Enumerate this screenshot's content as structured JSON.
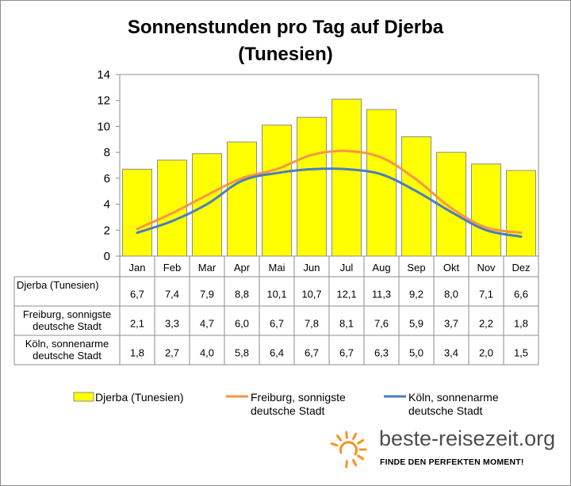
{
  "chart_data": {
    "type": "bar",
    "title": "Sonnenstunden pro Tag auf Djerba (Tunesien)",
    "title_lines": [
      "Sonnenstunden pro Tag auf Djerba",
      "(Tunesien)"
    ],
    "categories": [
      "Jan",
      "Feb",
      "Mar",
      "Apr",
      "Mai",
      "Jun",
      "Jul",
      "Aug",
      "Sep",
      "Okt",
      "Nov",
      "Dez"
    ],
    "ylim": [
      0,
      14
    ],
    "yticks": [
      0,
      2,
      4,
      6,
      8,
      10,
      12,
      14
    ],
    "series": [
      {
        "name": "Djerba (Tunesien)",
        "type": "bar",
        "color": "#ffff00",
        "values": [
          6.7,
          7.4,
          7.9,
          8.8,
          10.1,
          10.7,
          12.1,
          11.3,
          9.2,
          8.0,
          7.1,
          6.6
        ],
        "labels": [
          "6,7",
          "7,4",
          "7,9",
          "8,8",
          "10,1",
          "10,7",
          "12,1",
          "11,3",
          "9,2",
          "8,0",
          "7,1",
          "6,6"
        ]
      },
      {
        "name": "Freiburg, sonnigste deutsche Stadt",
        "name_lines": [
          "Freiburg, sonnigste",
          "deutsche Stadt"
        ],
        "type": "line",
        "color": "#f79646",
        "values": [
          2.1,
          3.3,
          4.7,
          6.0,
          6.7,
          7.8,
          8.1,
          7.6,
          5.9,
          3.7,
          2.2,
          1.8
        ],
        "labels": [
          "2,1",
          "3,3",
          "4,7",
          "6,0",
          "6,7",
          "7,8",
          "8,1",
          "7,6",
          "5,9",
          "3,7",
          "2,2",
          "1,8"
        ]
      },
      {
        "name": "Köln, sonnenarme deutsche Stadt",
        "name_lines": [
          "Köln, sonnenarme",
          "deutsche Stadt"
        ],
        "type": "line",
        "color": "#4a7ebb",
        "values": [
          1.8,
          2.7,
          4.0,
          5.8,
          6.4,
          6.7,
          6.7,
          6.3,
          5.0,
          3.4,
          2.0,
          1.5
        ],
        "labels": [
          "1,8",
          "2,7",
          "4,0",
          "5,8",
          "6,4",
          "6,7",
          "6,7",
          "6,3",
          "5,0",
          "3,4",
          "2,0",
          "1,5"
        ]
      }
    ],
    "table_row_labels": [
      [
        "Djerba (Tunesien)"
      ],
      [
        "Freiburg, sonnigste",
        "deutsche Stadt"
      ],
      [
        "Köln, sonnenarme",
        "deutsche Stadt"
      ]
    ],
    "legend_position": "bottom"
  },
  "branding": {
    "site": "beste-reisezeit.org",
    "tagline": "FINDE DEN PERFEKTEN MOMENT!",
    "logo_color": "#f7941d"
  }
}
